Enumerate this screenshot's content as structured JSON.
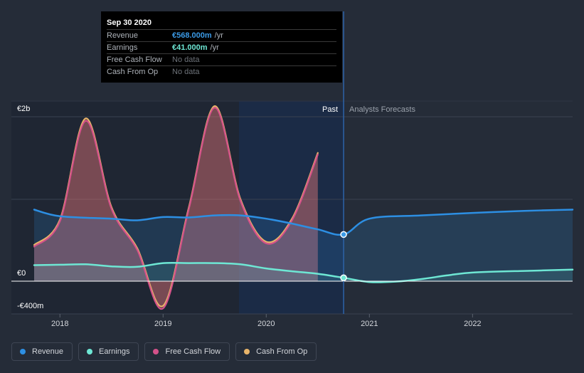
{
  "tooltip": {
    "date": "Sep 30 2020",
    "rows": [
      {
        "label": "Revenue",
        "value": "€568.000m",
        "unit": "/yr",
        "color": "#3b9ae6"
      },
      {
        "label": "Earnings",
        "value": "€41.000m",
        "unit": "/yr",
        "color": "#6ee7d4"
      },
      {
        "label": "Free Cash Flow",
        "value": "No data",
        "unit": "",
        "color": ""
      },
      {
        "label": "Cash From Op",
        "value": "No data",
        "unit": "",
        "color": ""
      }
    ]
  },
  "sections": {
    "past": "Past",
    "forecast": "Analysts Forecasts"
  },
  "legend": [
    {
      "label": "Revenue",
      "color": "#2d8fe3"
    },
    {
      "label": "Earnings",
      "color": "#6ee7d4"
    },
    {
      "label": "Free Cash Flow",
      "color": "#d4528a"
    },
    {
      "label": "Cash From Op",
      "color": "#e8b46a"
    }
  ],
  "chart_data": {
    "type": "area",
    "y_ticks": [
      {
        "value": 2000,
        "label": "€2b"
      },
      {
        "value": 0,
        "label": "€0"
      },
      {
        "value": -400,
        "label": "-€400m"
      }
    ],
    "ylim": [
      -400,
      2150
    ],
    "xlim": [
      2017.75,
      2022.97
    ],
    "x_ticks": [
      {
        "value": 2018,
        "label": "2018"
      },
      {
        "value": 2019,
        "label": "2019"
      },
      {
        "value": 2020,
        "label": "2020"
      },
      {
        "value": 2021,
        "label": "2021"
      },
      {
        "value": 2022,
        "label": "2022"
      }
    ],
    "past_end": 2020.75,
    "series": [
      {
        "name": "Cash From Op",
        "key": "cfo",
        "color": "#e8b46a",
        "points": [
          [
            2017.75,
            440
          ],
          [
            2018.0,
            750
          ],
          [
            2018.25,
            1980
          ],
          [
            2018.5,
            900
          ],
          [
            2018.75,
            400
          ],
          [
            2019.0,
            -300
          ],
          [
            2019.25,
            900
          ],
          [
            2019.5,
            2130
          ],
          [
            2019.75,
            1000
          ],
          [
            2020.0,
            480
          ],
          [
            2020.25,
            760
          ],
          [
            2020.5,
            1560
          ]
        ]
      },
      {
        "name": "Free Cash Flow",
        "key": "fcf",
        "color": "#d4528a",
        "points": [
          [
            2017.75,
            420
          ],
          [
            2018.0,
            730
          ],
          [
            2018.25,
            1950
          ],
          [
            2018.5,
            880
          ],
          [
            2018.75,
            380
          ],
          [
            2019.0,
            -330
          ],
          [
            2019.25,
            880
          ],
          [
            2019.5,
            2110
          ],
          [
            2019.75,
            980
          ],
          [
            2020.0,
            460
          ],
          [
            2020.25,
            740
          ],
          [
            2020.5,
            1540
          ]
        ]
      },
      {
        "name": "Revenue",
        "key": "revenue",
        "color": "#2d8fe3",
        "points": [
          [
            2017.75,
            870
          ],
          [
            2018.0,
            790
          ],
          [
            2018.5,
            760
          ],
          [
            2018.75,
            740
          ],
          [
            2019.0,
            780
          ],
          [
            2019.25,
            775
          ],
          [
            2019.5,
            800
          ],
          [
            2019.75,
            800
          ],
          [
            2020.0,
            760
          ],
          [
            2020.25,
            700
          ],
          [
            2020.5,
            630
          ],
          [
            2020.75,
            568
          ],
          [
            2021.0,
            760
          ],
          [
            2021.5,
            800
          ],
          [
            2022.0,
            830
          ],
          [
            2022.5,
            855
          ],
          [
            2022.97,
            870
          ]
        ]
      },
      {
        "name": "Earnings",
        "key": "earnings",
        "color": "#6ee7d4",
        "points": [
          [
            2017.75,
            195
          ],
          [
            2018.0,
            200
          ],
          [
            2018.25,
            205
          ],
          [
            2018.5,
            180
          ],
          [
            2018.75,
            175
          ],
          [
            2019.0,
            220
          ],
          [
            2019.25,
            220
          ],
          [
            2019.5,
            220
          ],
          [
            2019.75,
            205
          ],
          [
            2020.0,
            155
          ],
          [
            2020.25,
            120
          ],
          [
            2020.5,
            90
          ],
          [
            2020.75,
            41
          ],
          [
            2021.0,
            -10
          ],
          [
            2021.25,
            -5
          ],
          [
            2021.5,
            25
          ],
          [
            2021.75,
            70
          ],
          [
            2022.0,
            105
          ],
          [
            2022.5,
            125
          ],
          [
            2022.97,
            140
          ]
        ]
      }
    ]
  }
}
